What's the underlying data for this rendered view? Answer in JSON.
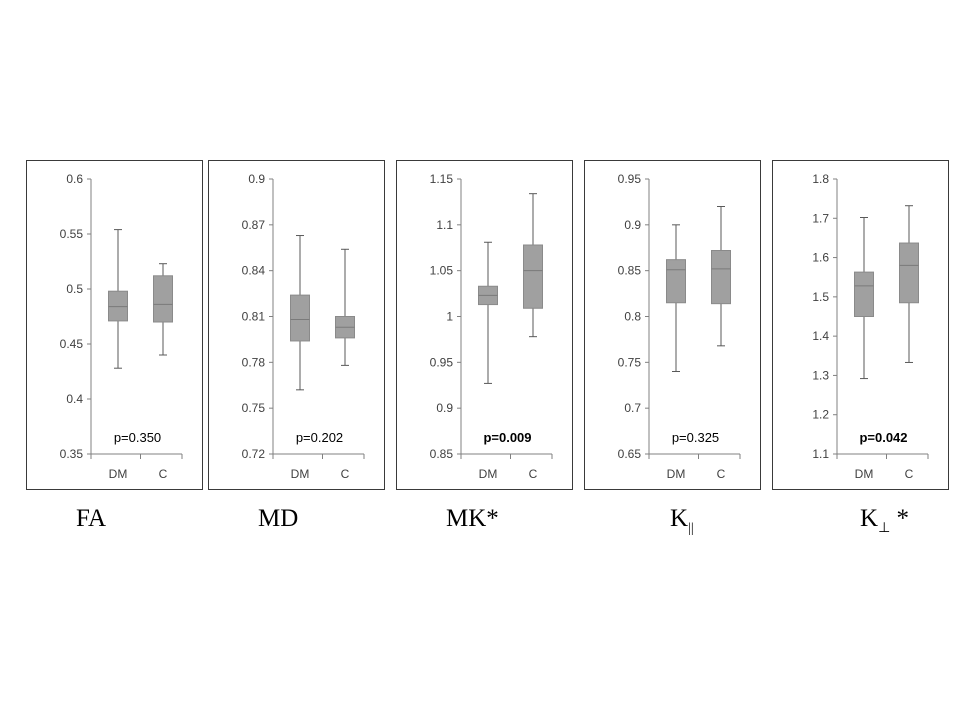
{
  "chart_data": [
    {
      "type": "boxplot",
      "caption": {
        "main": "FA",
        "sub": "",
        "suffix": ""
      },
      "ylim": [
        0.35,
        0.6
      ],
      "yticks": [
        "0.35",
        "0.4",
        "0.45",
        "0.5",
        "0.55",
        "0.6"
      ],
      "categories": [
        "DM",
        "C"
      ],
      "boxes": [
        {
          "min": 0.428,
          "q1": 0.471,
          "median": 0.484,
          "q3": 0.498,
          "max": 0.554
        },
        {
          "min": 0.44,
          "q1": 0.47,
          "median": 0.486,
          "q3": 0.512,
          "max": 0.523
        }
      ],
      "p_value": "p=0.350",
      "significant": false
    },
    {
      "type": "boxplot",
      "caption": {
        "main": "MD",
        "sub": "",
        "suffix": ""
      },
      "ylim": [
        0.72,
        0.9
      ],
      "yticks": [
        "0.72",
        "0.75",
        "0.78",
        "0.81",
        "0.84",
        "0.87",
        "0.9"
      ],
      "categories": [
        "DM",
        "C"
      ],
      "boxes": [
        {
          "min": 0.762,
          "q1": 0.794,
          "median": 0.808,
          "q3": 0.824,
          "max": 0.863
        },
        {
          "min": 0.778,
          "q1": 0.796,
          "median": 0.803,
          "q3": 0.81,
          "max": 0.854
        }
      ],
      "p_value": "p=0.202",
      "significant": false
    },
    {
      "type": "boxplot",
      "caption": {
        "main": "MK*",
        "sub": "",
        "suffix": ""
      },
      "ylim": [
        0.85,
        1.15
      ],
      "yticks": [
        "0.85",
        "0.9",
        "0.95",
        "1",
        "1.05",
        "1.1",
        "1.15"
      ],
      "categories": [
        "DM",
        "C"
      ],
      "boxes": [
        {
          "min": 0.927,
          "q1": 1.013,
          "median": 1.023,
          "q3": 1.033,
          "max": 1.081
        },
        {
          "min": 0.978,
          "q1": 1.009,
          "median": 1.05,
          "q3": 1.078,
          "max": 1.134
        }
      ],
      "p_value": "p=0.009",
      "significant": true
    },
    {
      "type": "boxplot",
      "caption": {
        "main": "K",
        "sub": "||",
        "suffix": ""
      },
      "ylim": [
        0.65,
        0.95
      ],
      "yticks": [
        "0.65",
        "0.7",
        "0.75",
        "0.8",
        "0.85",
        "0.9",
        "0.95"
      ],
      "categories": [
        "DM",
        "C"
      ],
      "boxes": [
        {
          "min": 0.74,
          "q1": 0.815,
          "median": 0.851,
          "q3": 0.862,
          "max": 0.9
        },
        {
          "min": 0.768,
          "q1": 0.814,
          "median": 0.852,
          "q3": 0.872,
          "max": 0.92
        }
      ],
      "p_value": "p=0.325",
      "significant": false
    },
    {
      "type": "boxplot",
      "caption": {
        "main": "K",
        "sub": "⊥",
        "suffix": " *"
      },
      "ylim": [
        1.1,
        1.8
      ],
      "yticks": [
        "1.1",
        "1.2",
        "1.3",
        "1.4",
        "1.5",
        "1.6",
        "1.7",
        "1.8"
      ],
      "categories": [
        "DM",
        "C"
      ],
      "boxes": [
        {
          "min": 1.292,
          "q1": 1.45,
          "median": 1.528,
          "q3": 1.563,
          "max": 1.702
        },
        {
          "min": 1.333,
          "q1": 1.485,
          "median": 1.58,
          "q3": 1.637,
          "max": 1.732
        }
      ],
      "p_value": "p=0.042",
      "significant": true
    }
  ],
  "colors": {
    "box_fill": "#a0a0a0",
    "box_stroke": "#8a8a8a",
    "whisker": "#595959",
    "axis": "#808080",
    "median": "#7a7a7a",
    "border": "#3a3a3a"
  }
}
